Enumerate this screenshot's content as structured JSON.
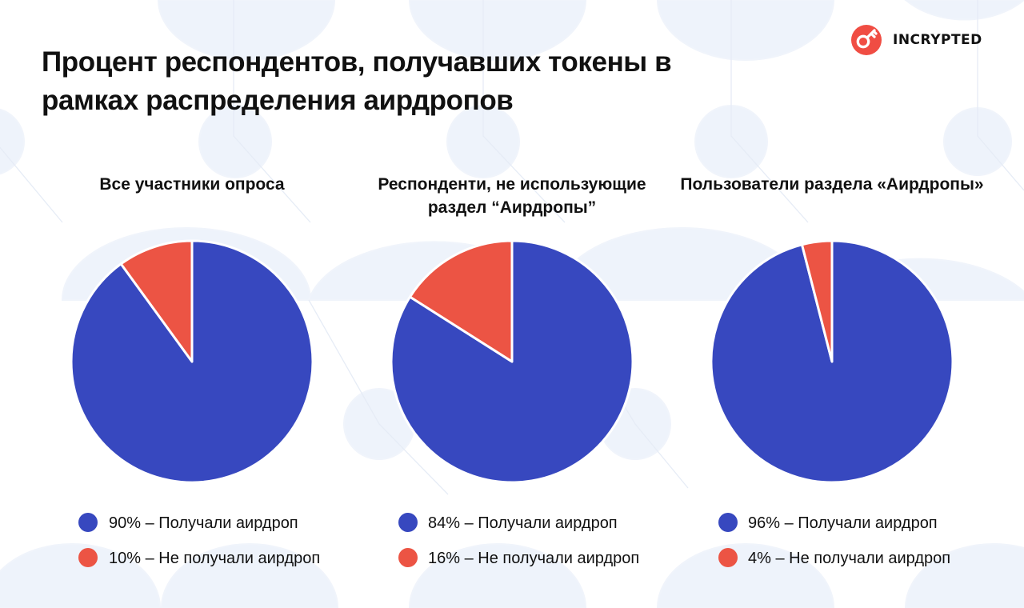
{
  "title": "Процент респондентов, получавших токены в рамках распределения аирдропов",
  "logo": {
    "text": "INCRYPTED",
    "icon": "key-icon"
  },
  "colors": {
    "received": "#3748bf",
    "not_received": "#ec5444",
    "background": "#ffffff",
    "pattern": "#eef3fb",
    "logo": "#f04d43"
  },
  "chart_data": [
    {
      "type": "pie",
      "title": "Все участники опроса",
      "slices": [
        {
          "label": "90% – Получали аирдроп",
          "value": 90,
          "color": "#3748bf"
        },
        {
          "label": "10% – Не получали аирдроп",
          "value": 10,
          "color": "#ec5444"
        }
      ],
      "legend_placement": "bottom"
    },
    {
      "type": "pie",
      "title": "Респонденти, не использующие раздел “Аирдропы”",
      "slices": [
        {
          "label": "84% – Получали аирдроп",
          "value": 84,
          "color": "#3748bf"
        },
        {
          "label": "16% – Не получали аирдроп",
          "value": 16,
          "color": "#ec5444"
        }
      ],
      "legend_placement": "bottom"
    },
    {
      "type": "pie",
      "title": "Пользователи раздела «Аирдропы»",
      "slices": [
        {
          "label": "96% – Получали аирдроп",
          "value": 96,
          "color": "#3748bf"
        },
        {
          "label": "4% – Не получали аирдроп",
          "value": 4,
          "color": "#ec5444"
        }
      ],
      "legend_placement": "bottom"
    }
  ]
}
